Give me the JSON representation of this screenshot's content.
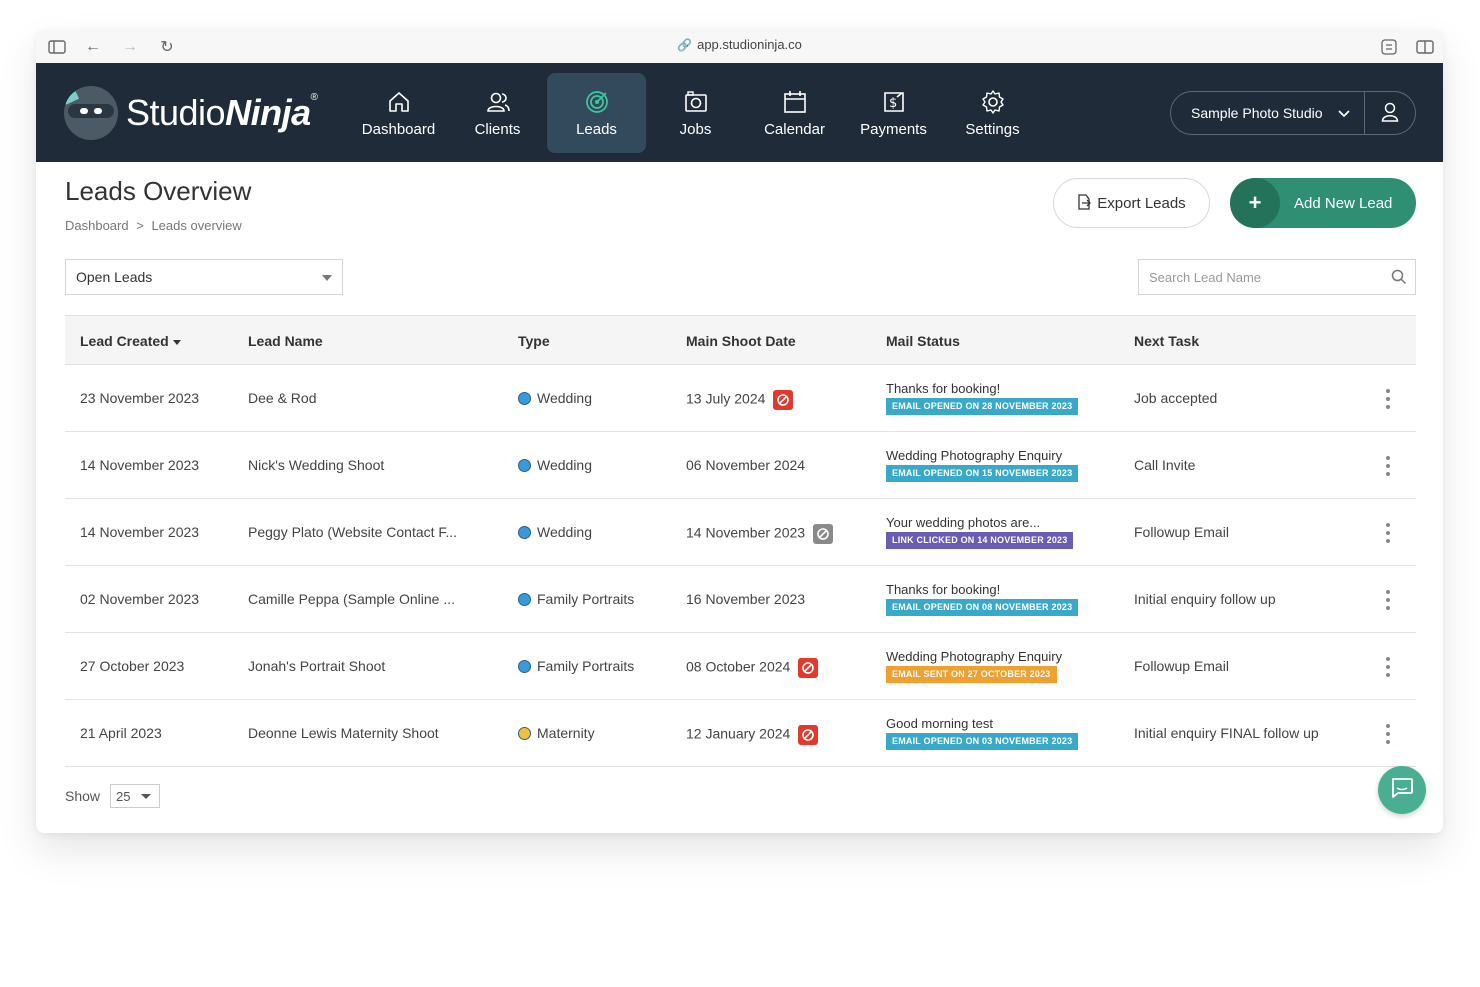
{
  "browser": {
    "url": "app.studioninja.co"
  },
  "logo": {
    "text_light": "Studio",
    "text_bold": "Ninja",
    "registered": "®"
  },
  "nav": {
    "items": [
      {
        "label": "Dashboard",
        "icon": "house-icon",
        "active": false
      },
      {
        "label": "Clients",
        "icon": "users-icon",
        "active": false
      },
      {
        "label": "Leads",
        "icon": "target-icon",
        "active": true
      },
      {
        "label": "Jobs",
        "icon": "camera-icon",
        "active": false
      },
      {
        "label": "Calendar",
        "icon": "calendar-icon",
        "active": false
      },
      {
        "label": "Payments",
        "icon": "invoice-dollar-icon",
        "active": false
      },
      {
        "label": "Settings",
        "icon": "gear-icon",
        "active": false
      }
    ],
    "studio_name": "Sample Photo Studio"
  },
  "page": {
    "title": "Leads Overview",
    "breadcrumb": [
      "Dashboard",
      ">",
      "Leads overview"
    ],
    "export_label": "Export Leads",
    "add_label": "Add New Lead",
    "filter_value": "Open Leads",
    "search_placeholder": "Search Lead Name"
  },
  "table": {
    "headers": [
      "Lead Created",
      "Lead Name",
      "Type",
      "Main Shoot Date",
      "Mail Status",
      "Next Task"
    ],
    "rows": [
      {
        "created": "23 November 2023",
        "name": "Dee & Rod",
        "type": "Wedding",
        "type_color": "#3a9ad9",
        "shoot": "13 July 2024",
        "shoot_flag": "red",
        "mail_subject": "Thanks for booking!",
        "mail_tag": "EMAIL OPENED ON 28 NOVEMBER 2023",
        "tag_color": "#39a9c9",
        "next": "Job accepted"
      },
      {
        "created": "14 November 2023",
        "name": "Nick's Wedding Shoot",
        "type": "Wedding",
        "type_color": "#3a9ad9",
        "shoot": "06 November 2024",
        "shoot_flag": "none",
        "mail_subject": "Wedding Photography Enquiry",
        "mail_tag": "EMAIL OPENED ON 15 NOVEMBER 2023",
        "tag_color": "#39a9c9",
        "next": "Call Invite"
      },
      {
        "created": "14 November 2023",
        "name": "Peggy Plato (Website Contact F...",
        "type": "Wedding",
        "type_color": "#3a9ad9",
        "shoot": "14 November 2023",
        "shoot_flag": "grey",
        "mail_subject": "Your wedding photos are...",
        "mail_tag": "LINK CLICKED ON 14 NOVEMBER 2023",
        "tag_color": "#6a5bb5",
        "next": "Followup Email"
      },
      {
        "created": "02 November 2023",
        "name": "Camille Peppa (Sample Online ...",
        "type": "Family Portraits",
        "type_color": "#3a9ad9",
        "shoot": "16 November 2023",
        "shoot_flag": "none",
        "mail_subject": "Thanks for booking!",
        "mail_tag": "EMAIL OPENED ON 08 NOVEMBER 2023",
        "tag_color": "#39a9c9",
        "next": "Initial enquiry follow up"
      },
      {
        "created": "27 October 2023",
        "name": "Jonah's Portrait Shoot",
        "type": "Family Portraits",
        "type_color": "#3a9ad9",
        "shoot": "08 October 2024",
        "shoot_flag": "red",
        "mail_subject": "Wedding Photography Enquiry",
        "mail_tag": "EMAIL SENT ON 27 OCTOBER 2023",
        "tag_color": "#f0a030",
        "next": "Followup Email"
      },
      {
        "created": "21 April 2023",
        "name": "Deonne Lewis Maternity Shoot",
        "type": "Maternity",
        "type_color": "#f0c040",
        "shoot": "12 January 2024",
        "shoot_flag": "red",
        "mail_subject": "Good morning test",
        "mail_tag": "EMAIL OPENED ON 03 NOVEMBER 2023",
        "tag_color": "#39a9c9",
        "next": "Initial enquiry FINAL follow up"
      }
    ]
  },
  "footer": {
    "show_label": "Show",
    "show_value": "25"
  }
}
